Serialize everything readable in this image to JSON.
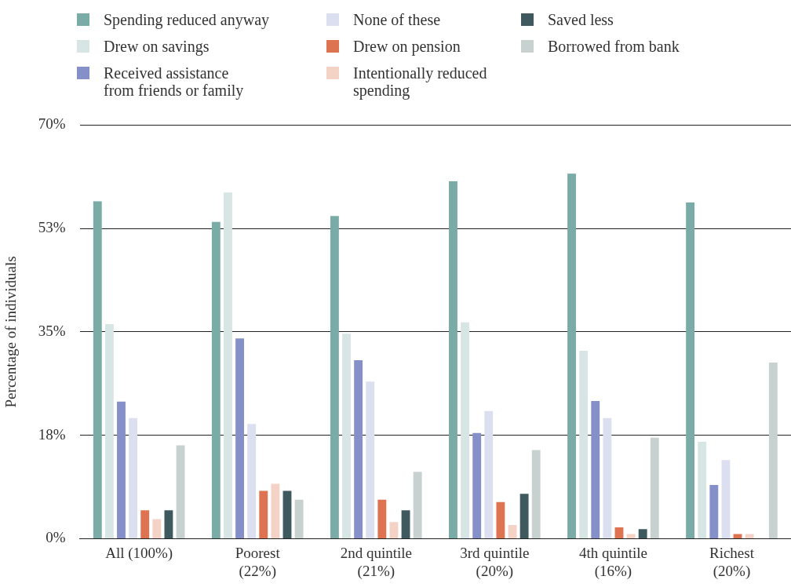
{
  "chart_data": {
    "type": "bar",
    "ylabel": "Percentage of individuals",
    "categories": [
      "All (100%)",
      "Poorest (22%)",
      "2nd quintile (21%)",
      "3rd quintile (20%)",
      "4th quintile (16%)",
      "Richest (20%)"
    ],
    "series": [
      {
        "name": "Spending reduced anyway",
        "color": "#7aaba6",
        "values": [
          57.1,
          53.6,
          54.6,
          60.5,
          61.8,
          56.9
        ]
      },
      {
        "name": "Drew on savings",
        "color": "#d7e5e5",
        "values": [
          36.3,
          58.6,
          34.7,
          36.6,
          31.8,
          16.4
        ]
      },
      {
        "name": "Received assistance from friends or family",
        "color": "#8590c8",
        "values": [
          23.2,
          33.9,
          30.2,
          17.9,
          23.3,
          9.1
        ]
      },
      {
        "name": "None of these",
        "color": "#dcdff0",
        "values": [
          20.4,
          19.4,
          26.6,
          21.6,
          20.4,
          13.3
        ]
      },
      {
        "name": "Drew on pension",
        "color": "#dd7350",
        "values": [
          4.8,
          8.1,
          6.6,
          6.2,
          1.9,
          0.8
        ]
      },
      {
        "name": "Intentionally reduced spending",
        "color": "#f4d2c6",
        "values": [
          3.3,
          9.3,
          2.8,
          2.3,
          0.8,
          0.8
        ]
      },
      {
        "name": "Saved less",
        "color": "#3e5a5e",
        "values": [
          4.8,
          8.1,
          4.8,
          7.6,
          1.6,
          null
        ]
      },
      {
        "name": "Borrowed from bank",
        "color": "#c7d1cf",
        "values": [
          15.8,
          6.6,
          11.3,
          15.0,
          17.1,
          29.8
        ]
      }
    ],
    "ylim": [
      0,
      70
    ],
    "yticks": [
      {
        "value": 0,
        "label": "0%"
      },
      {
        "value": 17.5,
        "label": "18%"
      },
      {
        "value": 35,
        "label": "35%"
      },
      {
        "value": 52.5,
        "label": "53%"
      },
      {
        "value": 70,
        "label": "70%"
      }
    ],
    "grid": "y",
    "legend": "top"
  }
}
